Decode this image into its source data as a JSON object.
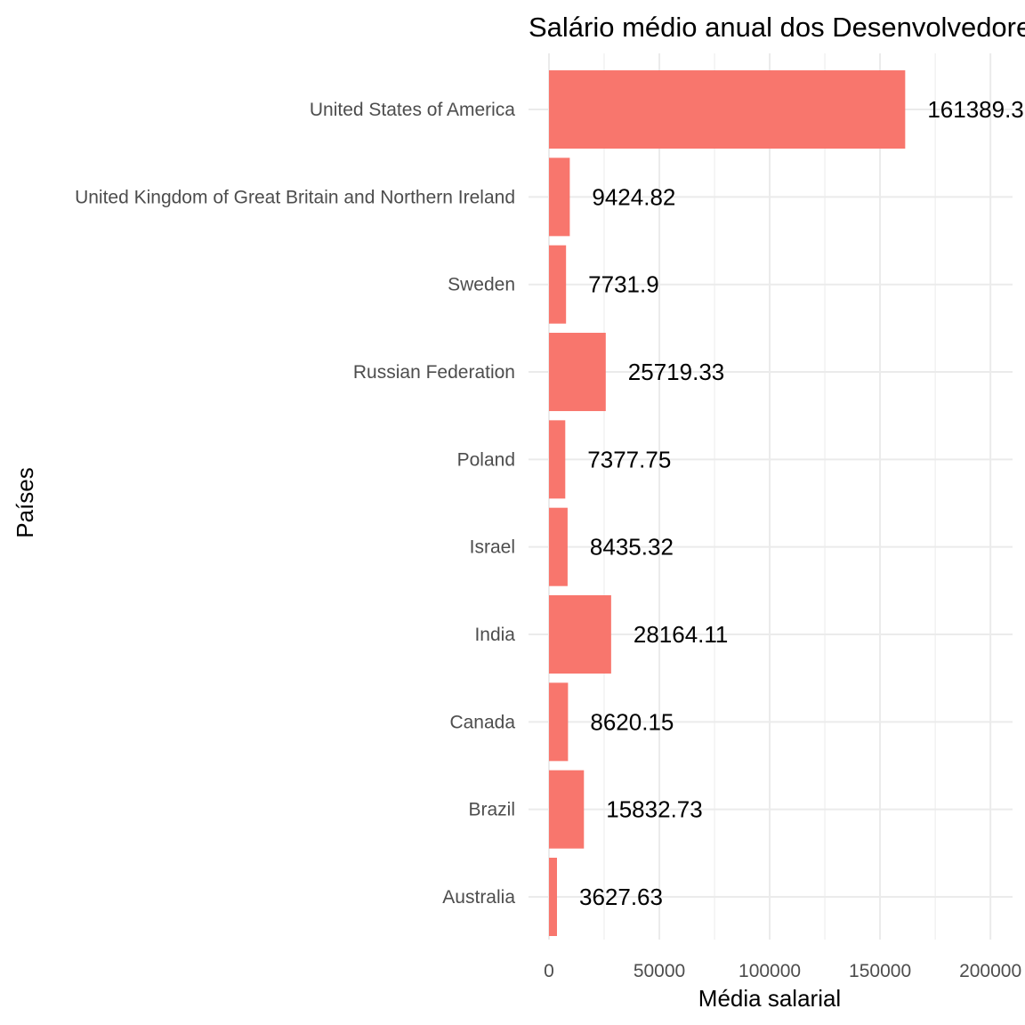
{
  "chart_data": {
    "type": "bar",
    "orientation": "horizontal",
    "title": "Salário médio anual dos Desenvolvedores",
    "xlabel": "Média salarial",
    "ylabel": "Países",
    "xlim": [
      0,
      210000
    ],
    "x_ticks": [
      0,
      50000,
      100000,
      150000,
      200000
    ],
    "x_tick_labels": [
      "0",
      "50000",
      "100000",
      "150000",
      "200000"
    ],
    "categories": [
      "Australia",
      "Brazil",
      "Canada",
      "India",
      "Israel",
      "Poland",
      "Russian Federation",
      "Sweden",
      "United Kingdom of Great Britain and Northern Ireland",
      "United States of America"
    ],
    "values": [
      3627.63,
      15832.73,
      8620.15,
      28164.11,
      8435.32,
      7377.75,
      25719.33,
      7731.9,
      9424.82,
      161389.3
    ],
    "data_labels": [
      "3627.63",
      "15832.73",
      "8620.15",
      "28164.11",
      "8435.32",
      "7377.75",
      "25719.33",
      "7731.9",
      "9424.82",
      "161389.3"
    ],
    "bar_color": "#f8766d",
    "grid": true,
    "legend": "none"
  }
}
